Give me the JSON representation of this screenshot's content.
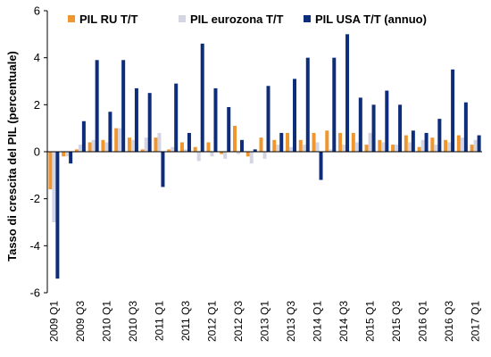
{
  "chart_data": {
    "type": "bar",
    "title": "",
    "xlabel": "",
    "ylabel": "Tasso di crescita del PIL (percentuale)",
    "ylim": [
      -6,
      6
    ],
    "yticks": [
      6,
      4,
      2,
      0,
      -2,
      -4,
      -6
    ],
    "legend_position": "top",
    "grid": false,
    "categories": [
      "2009 Q1",
      "2009 Q2",
      "2009 Q3",
      "2009 Q4",
      "2010 Q1",
      "2010 Q2",
      "2010 Q3",
      "2010 Q4",
      "2011 Q1",
      "2011 Q2",
      "2011 Q3",
      "2011 Q4",
      "2012 Q1",
      "2012 Q2",
      "2012 Q3",
      "2012 Q4",
      "2013 Q1",
      "2013 Q2",
      "2013 Q3",
      "2013 Q4",
      "2014 Q1",
      "2014 Q2",
      "2014 Q3",
      "2014 Q4",
      "2015 Q1",
      "2015 Q2",
      "2015 Q3",
      "2015 Q4",
      "2016 Q1",
      "2016 Q2",
      "2016 Q3",
      "2016 Q4",
      "2017 Q1"
    ],
    "tick_labels": [
      "2009 Q1",
      "2009 Q3",
      "2010 Q1",
      "2010 Q3",
      "2011 Q1",
      "2011 Q3",
      "2012 Q1",
      "2012 Q3",
      "2013 Q1",
      "2013 Q3",
      "2014 Q1",
      "2014 Q3",
      "2015 Q1",
      "2015 Q3",
      "2016 Q1",
      "2016 Q3",
      "2017 Q1"
    ],
    "series": [
      {
        "name": "PIL RU T/T",
        "color": "#f0962e",
        "values": [
          -1.6,
          -0.2,
          0.1,
          0.4,
          0.5,
          1.0,
          0.6,
          0.1,
          0.6,
          0.1,
          0.4,
          0.2,
          0.4,
          -0.1,
          1.1,
          -0.2,
          0.6,
          0.5,
          0.8,
          0.5,
          0.8,
          0.9,
          0.8,
          0.8,
          0.3,
          0.5,
          0.3,
          0.7,
          0.2,
          0.6,
          0.5,
          0.7,
          0.3
        ]
      },
      {
        "name": "PIL eurozona T/T",
        "color": "#d4d5e3",
        "values": [
          -3.0,
          -0.2,
          0.3,
          0.5,
          0.4,
          1.0,
          0.5,
          0.6,
          0.8,
          0.2,
          0.1,
          -0.4,
          -0.2,
          -0.3,
          -0.1,
          -0.5,
          -0.3,
          0.3,
          0.2,
          0.3,
          0.4,
          0.1,
          0.3,
          0.4,
          0.8,
          0.4,
          0.3,
          0.4,
          0.5,
          0.3,
          0.4,
          0.6,
          0.5
        ]
      },
      {
        "name": "PIL USA T/T (annuo)",
        "color": "#0d2d7a",
        "values": [
          -5.4,
          -0.5,
          1.3,
          3.9,
          1.7,
          3.9,
          2.7,
          2.5,
          -1.5,
          2.9,
          0.8,
          4.6,
          2.7,
          1.9,
          0.5,
          0.1,
          2.8,
          0.8,
          3.1,
          4.0,
          -1.2,
          4.0,
          5.0,
          2.3,
          2.0,
          2.6,
          2.0,
          0.9,
          0.8,
          1.4,
          3.5,
          2.1,
          0.7
        ]
      }
    ]
  }
}
